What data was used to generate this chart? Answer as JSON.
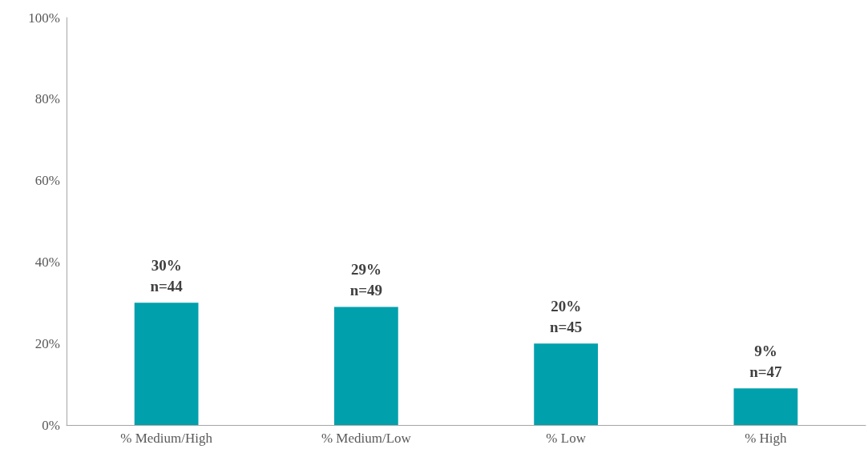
{
  "chart_data": {
    "type": "bar",
    "categories": [
      "% Medium/High",
      "% Medium/Low",
      "% Low",
      "% High"
    ],
    "values": [
      30,
      29,
      20,
      9
    ],
    "color": "#00a0ac",
    "value_labels": [
      "30%\nn=44",
      "29%\nn=49",
      "20%\nn=45",
      "9%\nn=47"
    ],
    "ylim": [
      0,
      100
    ],
    "yticks": [
      {
        "value": 0,
        "label": "0%"
      },
      {
        "value": 20,
        "label": "20%"
      },
      {
        "value": 40,
        "label": "40%"
      },
      {
        "value": 60,
        "label": "60%"
      },
      {
        "value": 80,
        "label": "80%"
      },
      {
        "value": 100,
        "label": "100%"
      }
    ],
    "grid": false
  }
}
